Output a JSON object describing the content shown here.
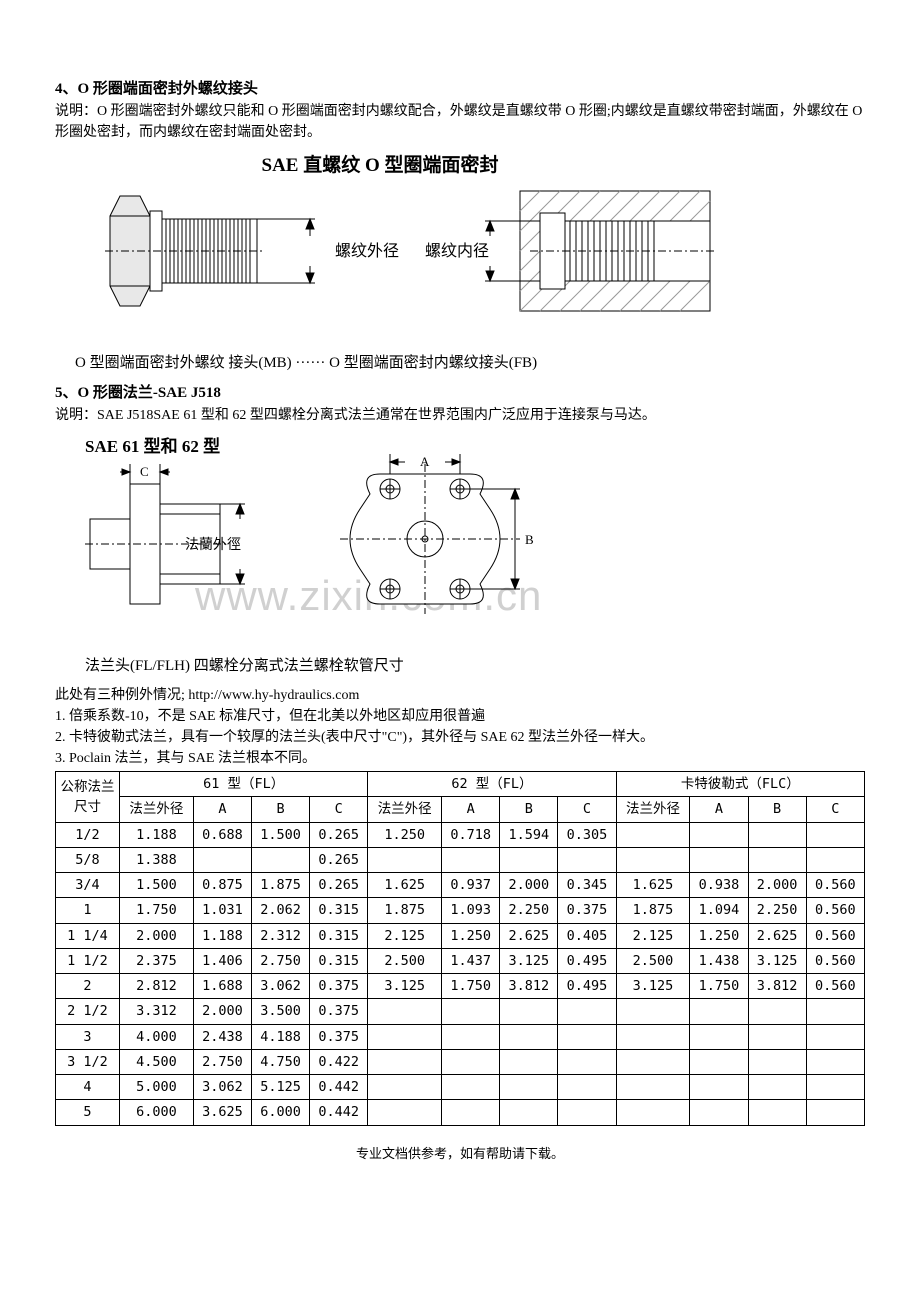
{
  "section4": {
    "heading": "4、O 形圈端面密封外螺纹接头",
    "desc": "说明：O 形圈端密封外螺纹只能和 O 形圈端面密封内螺纹配合，外螺纹是直螺纹带 O 形圈;内螺纹是直螺纹带密封端面，外螺纹在 O 形圈处密封，而内螺纹在密封端面处密封。",
    "fig_title": "SAE 直螺纹 O 型圈端面密封",
    "label_od": "螺纹外径",
    "label_id": "螺纹内径",
    "caption": "O 型圈端面密封外螺纹  接头(MB) ······ O 型圈端面密封内螺纹接头(FB)"
  },
  "section5": {
    "heading": "5、O 形圈法兰-SAE J518",
    "desc": "说明：SAE J518SAE 61 型和 62 型四螺栓分离式法兰通常在世界范围内广泛应用于连接泵与马达。",
    "fig_label_6162": "SAE 61 型和 62 型",
    "fig_label_flange_od": "法蘭外徑",
    "fig_caption": "法兰头(FL/FLH)      四螺栓分离式法兰螺栓软管尺寸",
    "exceptions_intro": "此处有三种例外情况;",
    "exceptions_url": "http://www.hy-hydraulics.com",
    "exc1": "1. 倍乘系数-10，不是 SAE 标准尺寸，但在北美以外地区却应用很普遍",
    "exc2": "2. 卡特彼勒式法兰，具有一个较厚的法兰头(表中尺寸\"C\")，其外径与 SAE 62 型法兰外径一样大。",
    "exc3": "3. Poclain 法兰，其与 SAE 法兰根本不同。"
  },
  "watermark": "www.zixin.com.cn",
  "table": {
    "h_nom": "公称法兰尺寸",
    "h_61": "61 型（FL）",
    "h_62": "62 型（FL）",
    "h_cat": "卡特彼勒式（FLC）",
    "h_od": "法兰外径",
    "h_A": "A",
    "h_B": "B",
    "h_C": "C",
    "rows": [
      {
        "n": "1/2",
        "a": [
          "1.188",
          "0.688",
          "1.500",
          "0.265"
        ],
        "b": [
          "1.250",
          "0.718",
          "1.594",
          "0.305"
        ],
        "c": [
          "",
          "",
          "",
          ""
        ]
      },
      {
        "n": "5/8",
        "a": [
          "1.388",
          "",
          "",
          "0.265"
        ],
        "b": [
          "",
          "",
          "",
          ""
        ],
        "c": [
          "",
          "",
          "",
          ""
        ]
      },
      {
        "n": "3/4",
        "a": [
          "1.500",
          "0.875",
          "1.875",
          "0.265"
        ],
        "b": [
          "1.625",
          "0.937",
          "2.000",
          "0.345"
        ],
        "c": [
          "1.625",
          "0.938",
          "2.000",
          "0.560"
        ]
      },
      {
        "n": "1",
        "a": [
          "1.750",
          "1.031",
          "2.062",
          "0.315"
        ],
        "b": [
          "1.875",
          "1.093",
          "2.250",
          "0.375"
        ],
        "c": [
          "1.875",
          "1.094",
          "2.250",
          "0.560"
        ]
      },
      {
        "n": "1 1/4",
        "a": [
          "2.000",
          "1.188",
          "2.312",
          "0.315"
        ],
        "b": [
          "2.125",
          "1.250",
          "2.625",
          "0.405"
        ],
        "c": [
          "2.125",
          "1.250",
          "2.625",
          "0.560"
        ]
      },
      {
        "n": "1 1/2",
        "a": [
          "2.375",
          "1.406",
          "2.750",
          "0.315"
        ],
        "b": [
          "2.500",
          "1.437",
          "3.125",
          "0.495"
        ],
        "c": [
          "2.500",
          "1.438",
          "3.125",
          "0.560"
        ]
      },
      {
        "n": "2",
        "a": [
          "2.812",
          "1.688",
          "3.062",
          "0.375"
        ],
        "b": [
          "3.125",
          "1.750",
          "3.812",
          "0.495"
        ],
        "c": [
          "3.125",
          "1.750",
          "3.812",
          "0.560"
        ]
      },
      {
        "n": "2 1/2",
        "a": [
          "3.312",
          "2.000",
          "3.500",
          "0.375"
        ],
        "b": [
          "",
          "",
          "",
          ""
        ],
        "c": [
          "",
          "",
          "",
          ""
        ]
      },
      {
        "n": "3",
        "a": [
          "4.000",
          "2.438",
          "4.188",
          "0.375"
        ],
        "b": [
          "",
          "",
          "",
          ""
        ],
        "c": [
          "",
          "",
          "",
          ""
        ]
      },
      {
        "n": "3 1/2",
        "a": [
          "4.500",
          "2.750",
          "4.750",
          "0.422"
        ],
        "b": [
          "",
          "",
          "",
          ""
        ],
        "c": [
          "",
          "",
          "",
          ""
        ]
      },
      {
        "n": "4",
        "a": [
          "5.000",
          "3.062",
          "5.125",
          "0.442"
        ],
        "b": [
          "",
          "",
          "",
          ""
        ],
        "c": [
          "",
          "",
          "",
          ""
        ]
      },
      {
        "n": "5",
        "a": [
          "6.000",
          "3.625",
          "6.000",
          "0.442"
        ],
        "b": [
          "",
          "",
          "",
          ""
        ],
        "c": [
          "",
          "",
          "",
          ""
        ]
      }
    ]
  },
  "footer": "专业文档供参考，如有帮助请下载。"
}
